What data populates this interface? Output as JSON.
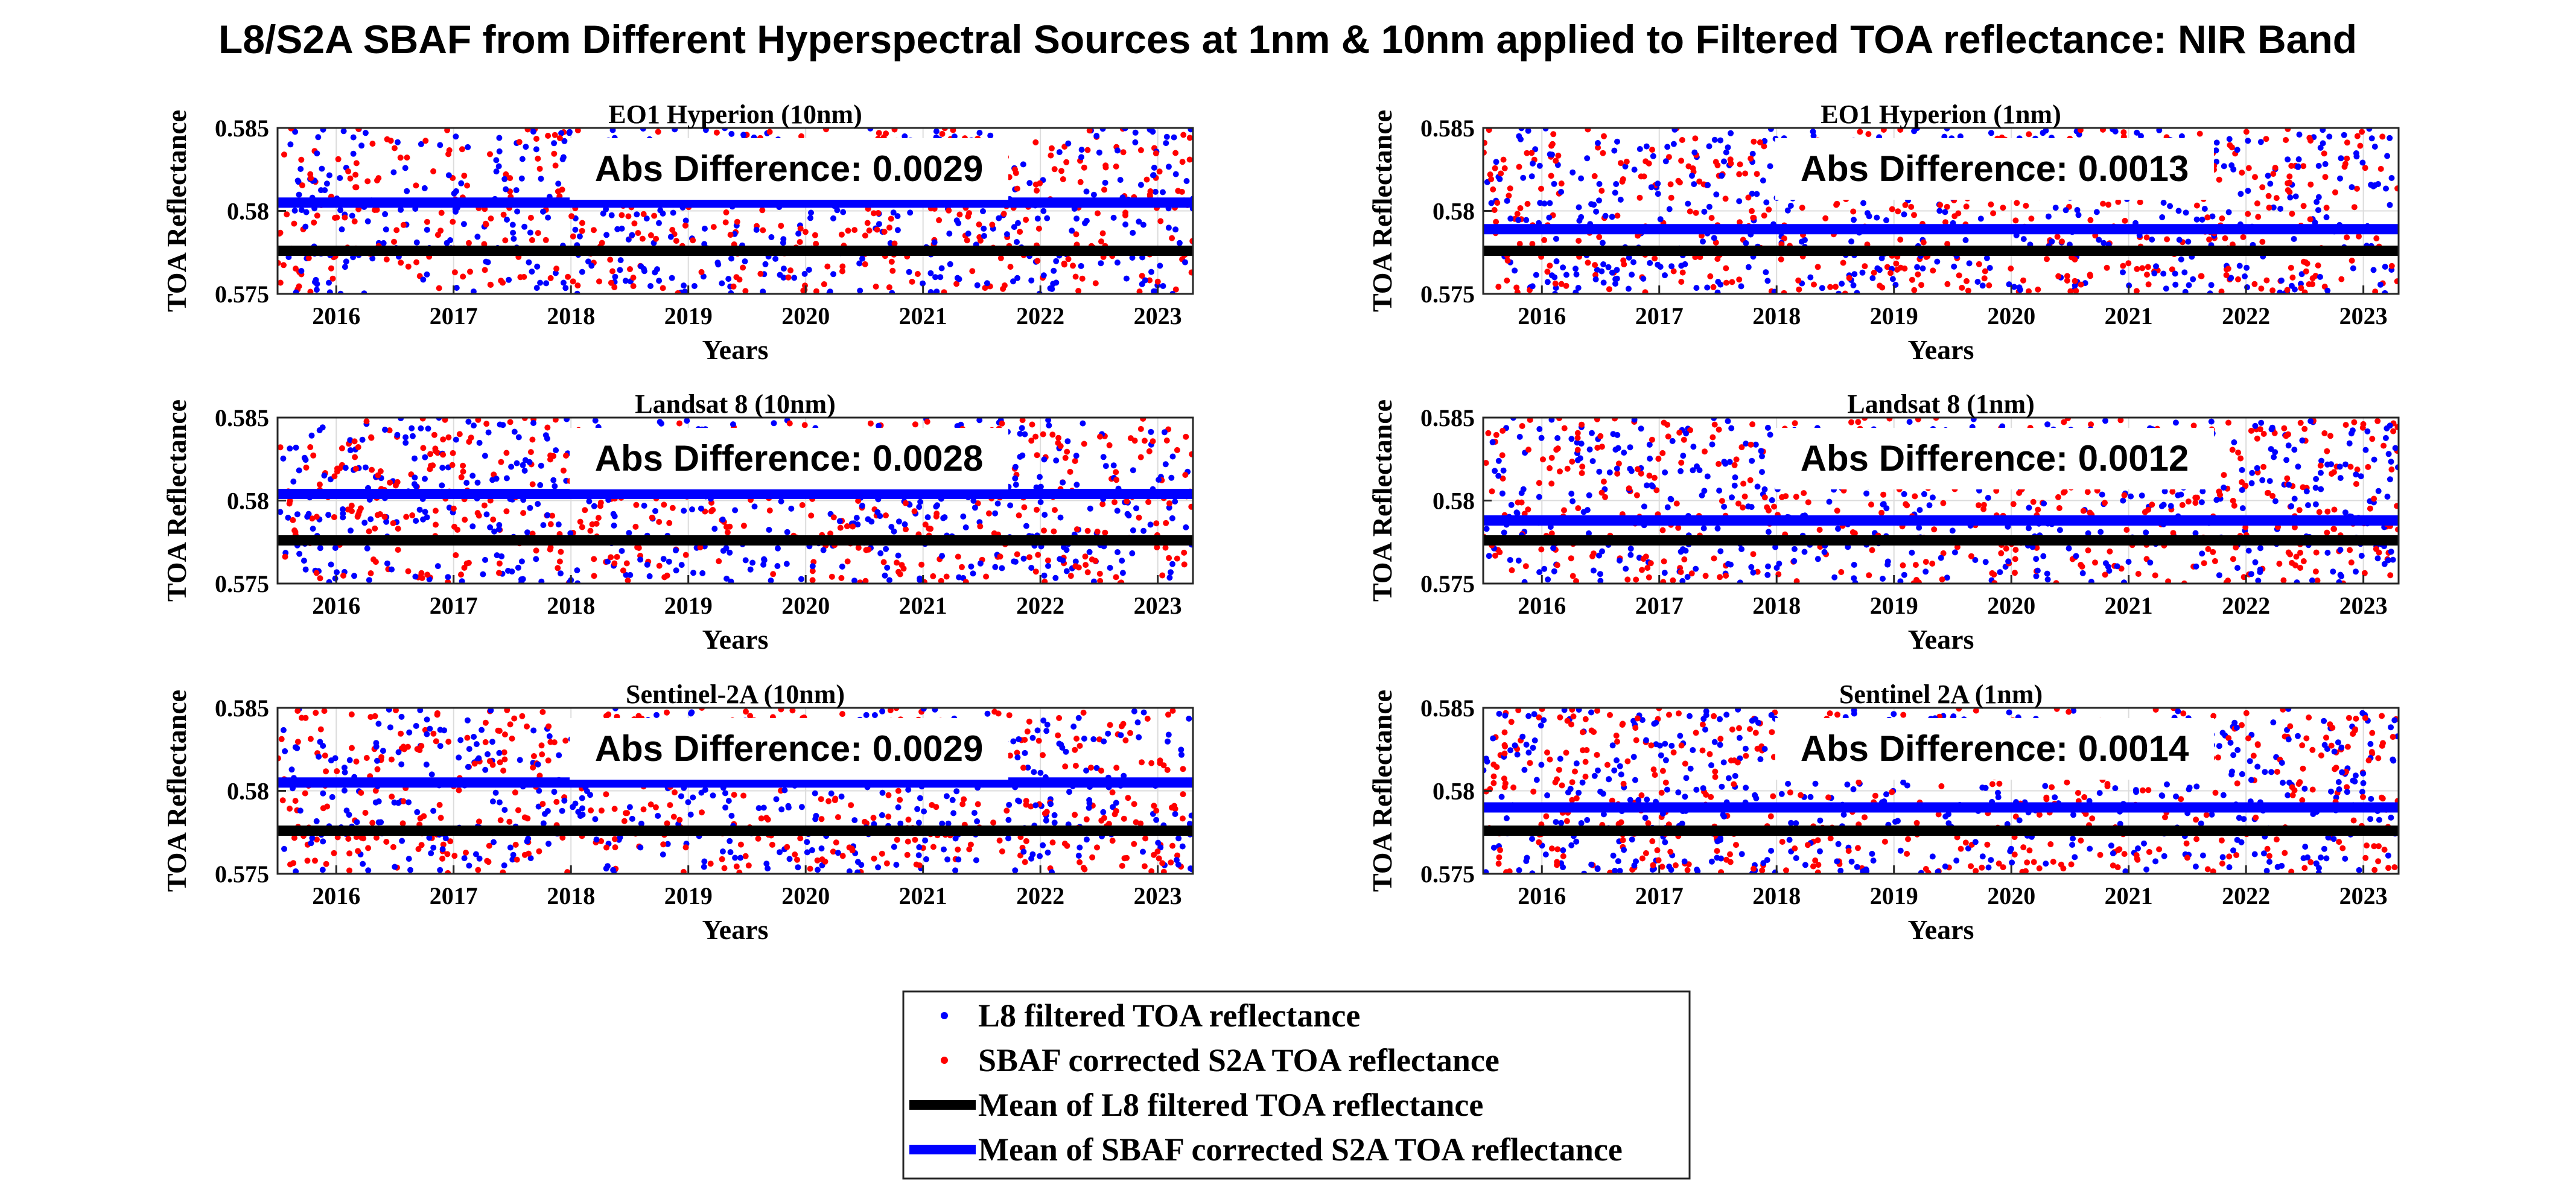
{
  "figure_title": "L8/S2A SBAF from Different Hyperspectral Sources at 1nm & 10nm applied to Filtered TOA reflectance: NIR Band",
  "colors": {
    "l8": "#0000ff",
    "s2a": "#ff0000",
    "mean_l8": "#000000",
    "mean_s2a": "#0000ff"
  },
  "legend": {
    "items": [
      {
        "label": "L8 filtered TOA reflectance",
        "style": "dot",
        "color": "#0000ff"
      },
      {
        "label": "SBAF corrected S2A TOA reflectance",
        "style": "dot",
        "color": "#ff0000"
      },
      {
        "label": "Mean of L8 filtered TOA reflectance",
        "style": "line",
        "color": "#000000"
      },
      {
        "label": "Mean of SBAF corrected S2A TOA reflectance",
        "style": "line",
        "color": "#0000ff"
      }
    ]
  },
  "chart_data": [
    {
      "type": "scatter",
      "title": "EO1 Hyperion (10nm)",
      "xlabel": "Years",
      "ylabel": "TOA Reflectance",
      "xlim": [
        2015.5,
        2023.3
      ],
      "ylim": [
        0.575,
        0.585
      ],
      "xticks": [
        2016,
        2017,
        2018,
        2019,
        2020,
        2021,
        2022,
        2023
      ],
      "yticks": [
        0.575,
        0.58,
        0.585
      ],
      "mean_l8": 0.5776,
      "mean_s2a": 0.5805,
      "annotation": "Abs Difference: 0.0029",
      "seed": 11
    },
    {
      "type": "scatter",
      "title": "EO1 Hyperion (1nm)",
      "xlabel": "Years",
      "ylabel": "TOA Reflectance",
      "xlim": [
        2015.5,
        2023.3
      ],
      "ylim": [
        0.575,
        0.585
      ],
      "xticks": [
        2016,
        2017,
        2018,
        2019,
        2020,
        2021,
        2022,
        2023
      ],
      "yticks": [
        0.575,
        0.58,
        0.585
      ],
      "mean_l8": 0.5776,
      "mean_s2a": 0.5789,
      "annotation": "Abs Difference: 0.0013",
      "seed": 23
    },
    {
      "type": "scatter",
      "title": "Landsat 8 (10nm)",
      "xlabel": "Years",
      "ylabel": "TOA Reflectance",
      "xlim": [
        2015.5,
        2023.3
      ],
      "ylim": [
        0.575,
        0.585
      ],
      "xticks": [
        2016,
        2017,
        2018,
        2019,
        2020,
        2021,
        2022,
        2023
      ],
      "yticks": [
        0.575,
        0.58,
        0.585
      ],
      "mean_l8": 0.5776,
      "mean_s2a": 0.5804,
      "annotation": "Abs Difference: 0.0028",
      "seed": 37
    },
    {
      "type": "scatter",
      "title": "Landsat 8 (1nm)",
      "xlabel": "Years",
      "ylabel": "TOA Reflectance",
      "xlim": [
        2015.5,
        2023.3
      ],
      "ylim": [
        0.575,
        0.585
      ],
      "xticks": [
        2016,
        2017,
        2018,
        2019,
        2020,
        2021,
        2022,
        2023
      ],
      "yticks": [
        0.575,
        0.58,
        0.585
      ],
      "mean_l8": 0.5776,
      "mean_s2a": 0.5788,
      "annotation": "Abs Difference: 0.0012",
      "seed": 41
    },
    {
      "type": "scatter",
      "title": "Sentinel-2A (10nm)",
      "xlabel": "Years",
      "ylabel": "TOA Reflectance",
      "xlim": [
        2015.5,
        2023.3
      ],
      "ylim": [
        0.575,
        0.585
      ],
      "xticks": [
        2016,
        2017,
        2018,
        2019,
        2020,
        2021,
        2022,
        2023
      ],
      "yticks": [
        0.575,
        0.58,
        0.585
      ],
      "mean_l8": 0.5776,
      "mean_s2a": 0.5805,
      "annotation": "Abs Difference: 0.0029",
      "seed": 53
    },
    {
      "type": "scatter",
      "title": "Sentinel 2A (1nm)",
      "xlabel": "Years",
      "ylabel": "TOA Reflectance",
      "xlim": [
        2015.5,
        2023.3
      ],
      "ylim": [
        0.575,
        0.585
      ],
      "xticks": [
        2016,
        2017,
        2018,
        2019,
        2020,
        2021,
        2022,
        2023
      ],
      "yticks": [
        0.575,
        0.58,
        0.585
      ],
      "mean_l8": 0.5776,
      "mean_s2a": 0.579,
      "annotation": "Abs Difference: 0.0014",
      "seed": 67
    }
  ]
}
